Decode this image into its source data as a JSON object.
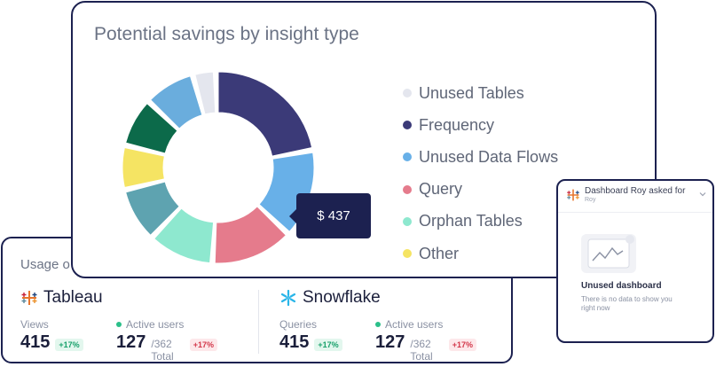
{
  "savings": {
    "title": "Potential savings by insight type",
    "tooltip": "$ 437",
    "legend": [
      {
        "label": "Unused Tables",
        "color": "#e4e6ee"
      },
      {
        "label": "Frequency",
        "color": "#3b3a78"
      },
      {
        "label": "Unused Data Flows",
        "color": "#68b0e8"
      },
      {
        "label": "Query",
        "color": "#e57b8c"
      },
      {
        "label": "Orphan Tables",
        "color": "#8ee8cf"
      },
      {
        "label": "Other",
        "color": "#f5e463"
      }
    ],
    "extra_colors": {
      "seg7": "#5ea3b0",
      "seg9": "#0c6a4a",
      "seg10": "#6aaddd"
    }
  },
  "usage": {
    "title": "Usage o",
    "tableau": {
      "name": "Tableau",
      "views_label": "Views",
      "views": "415",
      "views_change": "+17%",
      "active_label": "Active users",
      "active": "127",
      "active_total": "/362 Total",
      "active_change": "+17%"
    },
    "snowflake": {
      "name": "Snowflake",
      "queries_label": "Queries",
      "queries": "415",
      "queries_change": "+17%",
      "active_label": "Active users",
      "active": "127",
      "active_total": "/362 Total",
      "active_change": "+17%"
    }
  },
  "dashboard": {
    "title": "Dashboard Roy asked for",
    "subtitle": "Roy",
    "status": "Unused dashboard",
    "message": "There is no data to show you right now"
  }
}
